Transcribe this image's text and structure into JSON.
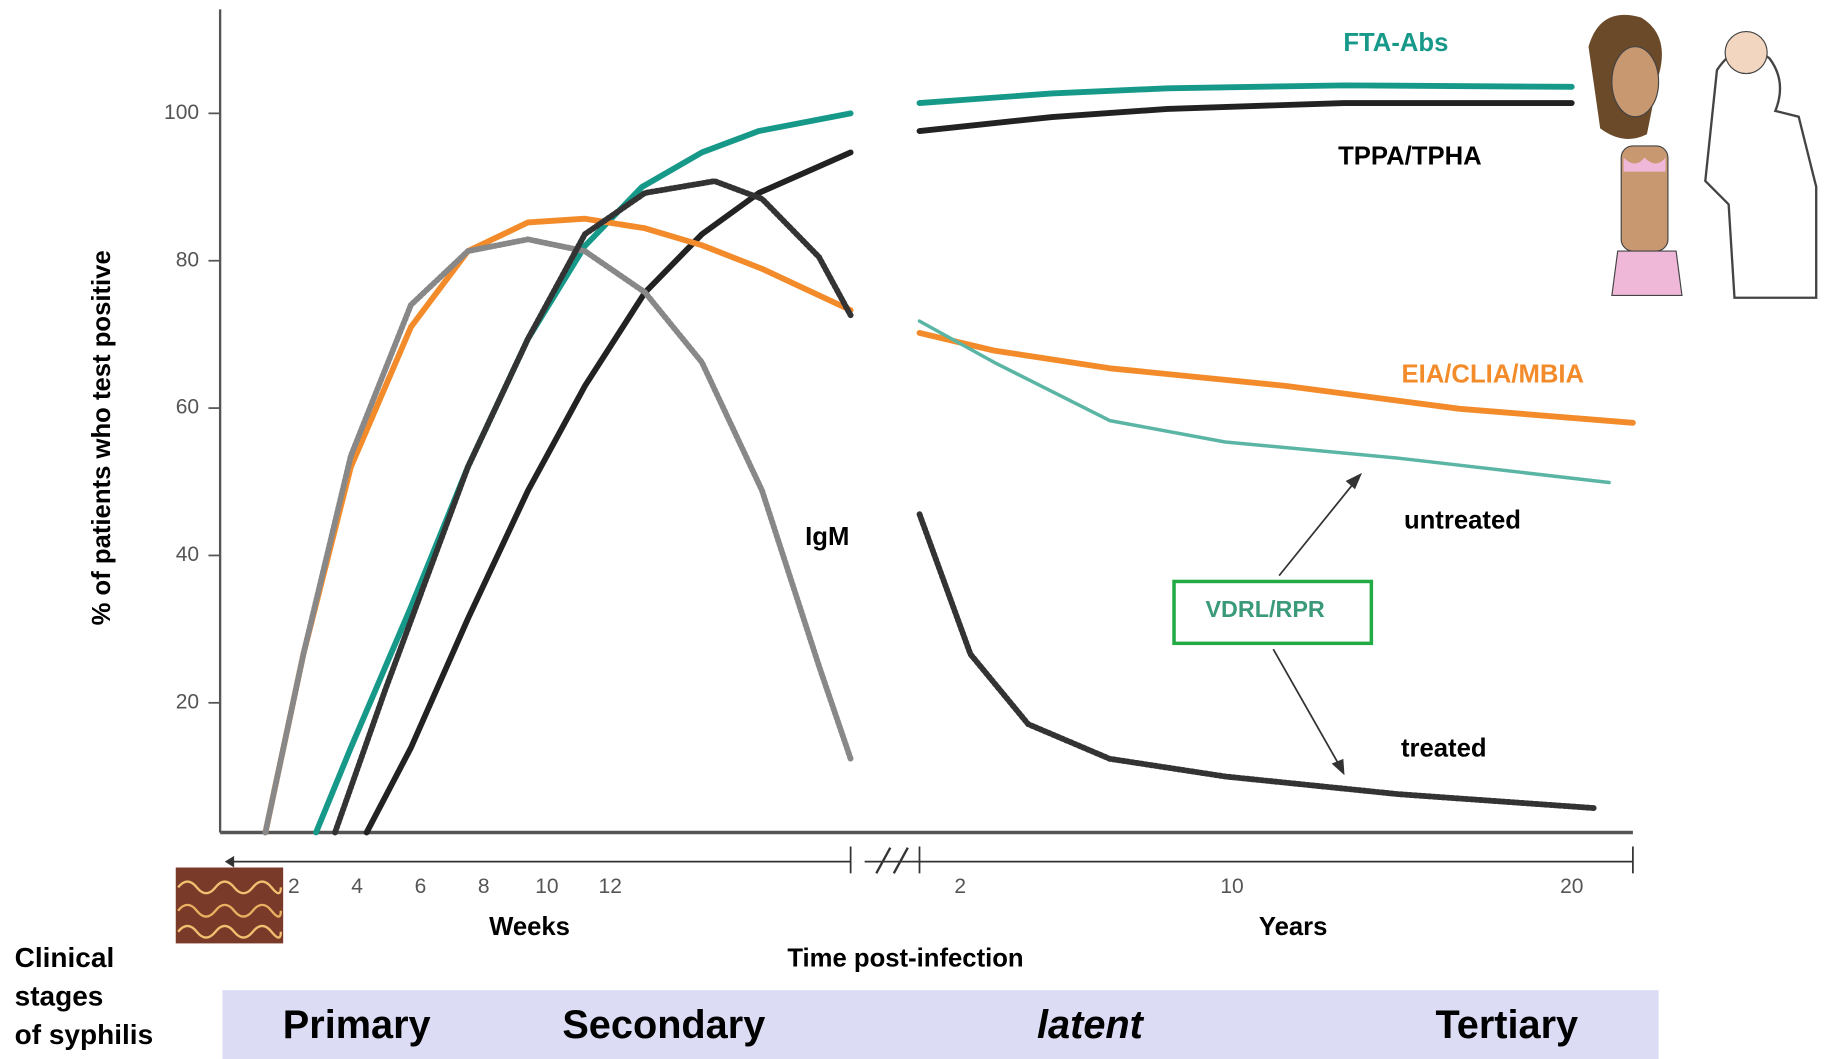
{
  "chart_data": {
    "type": "line",
    "y_label": "% of patients who test positive",
    "ylim": [
      2.4,
      113.8
    ],
    "yticks": [
      20,
      40,
      60,
      80,
      100
    ],
    "x_label": "Time post-infection",
    "weeks": {
      "label": "Weeks",
      "xlim": [
        0,
        19.6
      ],
      "xticks": [
        2,
        4,
        6,
        8,
        10,
        12
      ]
    },
    "years": {
      "label": "Years",
      "xlim": [
        0.8,
        21.8
      ],
      "xticks": [
        2,
        10,
        20
      ]
    },
    "grid": false,
    "series": [
      {
        "name": "FTA-Abs",
        "color": "#17998a",
        "line_style": "solid",
        "weeks": {
          "x": [
            2.7,
            3.8,
            5.7,
            7.5,
            9.4,
            11.2,
            13.0,
            14.9,
            16.7,
            19.6
          ],
          "values": [
            2.4,
            13.9,
            33,
            52,
            69.4,
            82,
            90,
            94.7,
            97.6,
            100
          ]
        },
        "years": {
          "x": [
            0.8,
            4.7,
            8.1,
            13.3,
            20
          ],
          "values": [
            101.4,
            102.7,
            103.4,
            103.8,
            103.6
          ]
        }
      },
      {
        "name": "TPPA/TPHA",
        "color": "#222222",
        "line_style": "solid",
        "weeks": {
          "x": [
            4.3,
            5.7,
            7.5,
            9.4,
            11.2,
            13.1,
            14.9,
            16.7,
            19.6
          ],
          "values": [
            2.4,
            13.9,
            31.4,
            48.8,
            63,
            75.7,
            83.6,
            89.2,
            94.7
          ]
        },
        "years": {
          "x": [
            0.8,
            4.7,
            8.1,
            13.3,
            20
          ],
          "values": [
            97.6,
            99.5,
            100.6,
            101.4,
            101.4
          ]
        }
      },
      {
        "name": "EIA/CLIA/MBIA",
        "color": "#f38b2a",
        "line_style": "solid",
        "weeks": {
          "x": [
            1.1,
            2.3,
            3.8,
            5.7,
            7.5,
            9.4,
            11.2,
            13.1,
            14.9,
            16.8,
            19.6
          ],
          "values": [
            2.4,
            26.6,
            52,
            71,
            81.3,
            85.2,
            85.7,
            84.4,
            82.1,
            78.9,
            73.3
          ]
        },
        "years": {
          "x": [
            0.8,
            3,
            6.4,
            11.6,
            16.7,
            21.8
          ],
          "values": [
            70.2,
            67.8,
            65.4,
            63,
            59.9,
            58
          ]
        }
      },
      {
        "name": "IgM",
        "color": "#888888",
        "line_style": "dotted",
        "weeks": {
          "x": [
            1.1,
            2.3,
            3.8,
            5.7,
            7.5,
            9.4,
            11.2,
            13.1,
            14.9,
            16.8,
            18.6,
            19.6
          ],
          "values": [
            2.4,
            26.6,
            53.5,
            74,
            81.3,
            82.9,
            81.3,
            75.7,
            66.2,
            48.8,
            25,
            12.4
          ]
        },
        "years": {
          "x": [],
          "values": []
        }
      },
      {
        "name": "treated",
        "color": "#333333",
        "line_style": "dotted",
        "weeks": {
          "x": [
            3.3,
            4.9,
            7.5,
            9.4,
            11.2,
            13.1,
            15.3,
            16.8,
            18.6,
            19.6
          ],
          "values": [
            2.4,
            21.9,
            52,
            69.4,
            83.6,
            89.2,
            90.8,
            88.4,
            80.5,
            72.6
          ]
        },
        "years": {
          "x": [
            0.8,
            2.3,
            4,
            6.4,
            9.8,
            14.9,
            20.7
          ],
          "values": [
            45.6,
            26.6,
            17.1,
            12.4,
            10,
            7.6,
            5.7
          ]
        }
      },
      {
        "name": "untreated",
        "color": "#5bb5a5",
        "line_style": "thin",
        "weeks": {
          "x": [],
          "values": []
        },
        "years": {
          "x": [
            0.8,
            3,
            6.4,
            9.8,
            14.9,
            21.1
          ],
          "values": [
            71.8,
            66.2,
            58.3,
            55.4,
            53.2,
            49.9
          ]
        }
      }
    ],
    "annotation": "VDRL/RPR",
    "stages_label": [
      "Clinical",
      "stages",
      "of syphilis"
    ],
    "stages": [
      "Primary",
      "Secondary",
      "latent",
      "Tertiary"
    ]
  }
}
